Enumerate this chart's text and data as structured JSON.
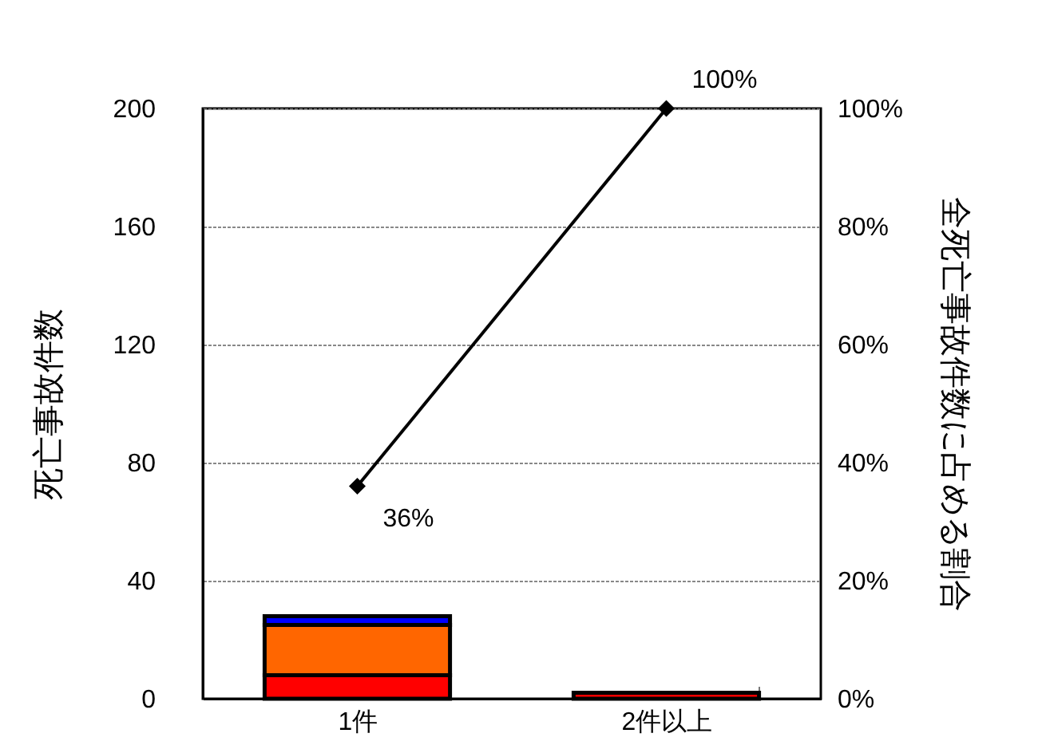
{
  "chart_data": {
    "type": "bar",
    "stacked": true,
    "categories": [
      "1件",
      "2件以上"
    ],
    "ylabel": "死亡事故件数",
    "y2label": "全死亡事故件数に占める割合",
    "ylim": [
      0,
      200
    ],
    "yticks": [
      0,
      40,
      80,
      120,
      160,
      200
    ],
    "y2lim": [
      0,
      100
    ],
    "y2ticks": [
      {
        "value": 0,
        "label": "0%"
      },
      {
        "value": 20,
        "label": "20%"
      },
      {
        "value": 40,
        "label": "40%"
      },
      {
        "value": 60,
        "label": "60%"
      },
      {
        "value": 80,
        "label": "80%"
      },
      {
        "value": 100,
        "label": "100%"
      }
    ],
    "grid": "y",
    "legend": false,
    "series": [
      {
        "color": "#ff0000",
        "values": [
          8,
          2
        ]
      },
      {
        "color": "#ff6600",
        "values": [
          17,
          null
        ]
      },
      {
        "color": "#0000ff",
        "values": [
          3,
          null
        ]
      },
      {
        "type": "line",
        "axis": "y2",
        "color": "#000000",
        "marker": "diamond",
        "values": [
          36,
          100
        ],
        "value_labels": [
          "36%",
          "100%"
        ]
      }
    ]
  }
}
